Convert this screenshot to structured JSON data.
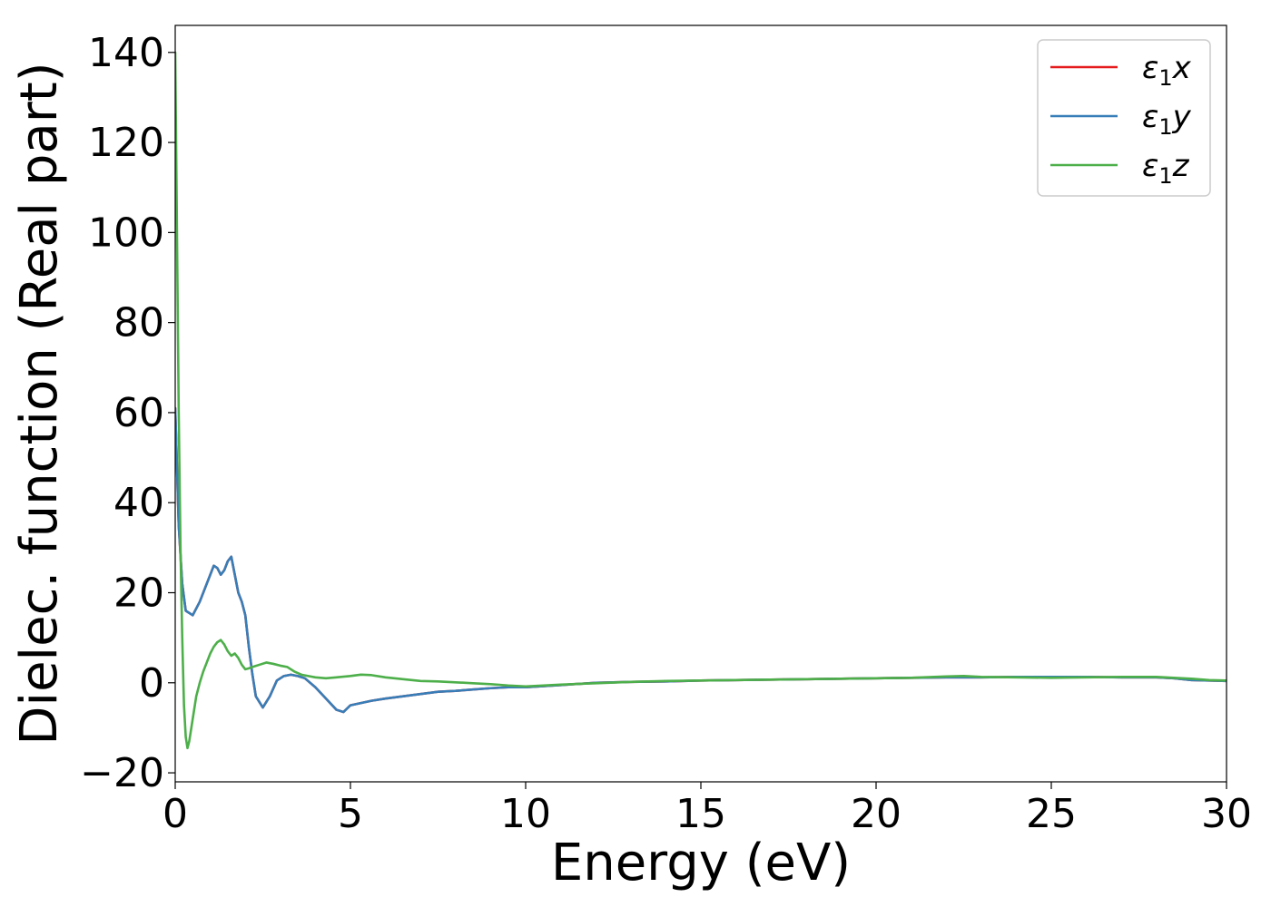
{
  "chart_data": {
    "type": "line",
    "title": "",
    "xlabel": "Energy (eV)",
    "ylabel": "Dielec. function (Real part)",
    "xlim": [
      0,
      30
    ],
    "ylim": [
      -22,
      146
    ],
    "xticks": [
      0,
      5,
      10,
      15,
      20,
      25,
      30
    ],
    "yticks": [
      -20,
      0,
      20,
      40,
      60,
      80,
      100,
      120,
      140
    ],
    "xtick_labels": [
      "0",
      "5",
      "10",
      "15",
      "20",
      "25",
      "30"
    ],
    "ytick_labels": [
      "−20",
      "0",
      "20",
      "40",
      "60",
      "80",
      "100",
      "120",
      "140"
    ],
    "grid": false,
    "legend_position": "top-right",
    "series": [
      {
        "name": "ε₁x",
        "legend_base": "ε",
        "legend_sub": "1",
        "legend_suffix": "x",
        "color": "#e41a1c",
        "x": [
          0,
          0.1,
          0.2,
          0.3,
          0.5,
          0.7,
          0.9,
          1.1,
          1.2,
          1.3,
          1.4,
          1.5,
          1.6,
          1.7,
          1.8,
          1.9,
          2.0,
          2.1,
          2.2,
          2.3,
          2.5,
          2.7,
          2.9,
          3.1,
          3.3,
          3.5,
          3.7,
          4.0,
          4.3,
          4.6,
          4.8,
          5.0,
          5.3,
          5.6,
          6.0,
          6.5,
          7.0,
          7.5,
          8.0,
          8.5,
          9.0,
          9.5,
          10,
          11,
          12,
          13,
          14,
          15,
          16,
          17,
          18,
          19,
          20,
          21,
          22,
          23,
          24,
          25,
          26,
          27,
          28,
          28.5,
          29,
          29.5,
          30
        ],
        "values": [
          61,
          35,
          22,
          16,
          15,
          18,
          22,
          26,
          25.5,
          24,
          25,
          27,
          28,
          24,
          20,
          18,
          15,
          8,
          2,
          -3,
          -5.5,
          -3,
          0.5,
          1.5,
          1.8,
          1.5,
          1,
          -1,
          -3.5,
          -6,
          -6.5,
          -5,
          -4.5,
          -4,
          -3.5,
          -3,
          -2.5,
          -2,
          -1.8,
          -1.5,
          -1.2,
          -1,
          -1,
          -0.5,
          0,
          0.2,
          0.3,
          0.5,
          0.6,
          0.7,
          0.8,
          0.9,
          1,
          1.1,
          1.2,
          1.2,
          1.3,
          1.3,
          1.3,
          1.2,
          1.2,
          1,
          0.6,
          0.5,
          0.4
        ]
      },
      {
        "name": "ε₁y",
        "legend_base": "ε",
        "legend_sub": "1",
        "legend_suffix": "y",
        "color": "#377eb8",
        "x": [
          0,
          0.1,
          0.2,
          0.3,
          0.5,
          0.7,
          0.9,
          1.1,
          1.2,
          1.3,
          1.4,
          1.5,
          1.6,
          1.7,
          1.8,
          1.9,
          2.0,
          2.1,
          2.2,
          2.3,
          2.5,
          2.7,
          2.9,
          3.1,
          3.3,
          3.5,
          3.7,
          4.0,
          4.3,
          4.6,
          4.8,
          5.0,
          5.3,
          5.6,
          6.0,
          6.5,
          7.0,
          7.5,
          8.0,
          8.5,
          9.0,
          9.5,
          10,
          11,
          12,
          13,
          14,
          15,
          16,
          17,
          18,
          19,
          20,
          21,
          22,
          23,
          24,
          25,
          26,
          27,
          28,
          28.5,
          29,
          29.5,
          30
        ],
        "values": [
          61,
          35,
          22,
          16,
          15,
          18,
          22,
          26,
          25.5,
          24,
          25,
          27,
          28,
          24,
          20,
          18,
          15,
          8,
          2,
          -3,
          -5.5,
          -3,
          0.5,
          1.5,
          1.8,
          1.5,
          1,
          -1,
          -3.5,
          -6,
          -6.5,
          -5,
          -4.5,
          -4,
          -3.5,
          -3,
          -2.5,
          -2,
          -1.8,
          -1.5,
          -1.2,
          -1,
          -1,
          -0.5,
          0,
          0.2,
          0.3,
          0.5,
          0.6,
          0.7,
          0.8,
          0.9,
          1,
          1.1,
          1.2,
          1.2,
          1.3,
          1.3,
          1.3,
          1.2,
          1.2,
          1,
          0.6,
          0.5,
          0.4
        ]
      },
      {
        "name": "ε₁z",
        "legend_base": "ε",
        "legend_sub": "1",
        "legend_suffix": "z",
        "color": "#4daf4a",
        "x": [
          0,
          0.05,
          0.1,
          0.15,
          0.2,
          0.25,
          0.3,
          0.35,
          0.4,
          0.5,
          0.6,
          0.7,
          0.8,
          0.9,
          1.0,
          1.1,
          1.2,
          1.3,
          1.4,
          1.5,
          1.6,
          1.7,
          1.8,
          1.9,
          2.0,
          2.1,
          2.2,
          2.4,
          2.6,
          2.8,
          3.0,
          3.2,
          3.4,
          3.6,
          3.8,
          4.0,
          4.3,
          4.6,
          5.0,
          5.3,
          5.6,
          6.0,
          6.5,
          7.0,
          7.5,
          8.0,
          8.5,
          9.0,
          9.5,
          10,
          11,
          12,
          13,
          14,
          15,
          16,
          17,
          18,
          19,
          20,
          21,
          22,
          22.5,
          23,
          24,
          25,
          26,
          27,
          28,
          28.5,
          29,
          29.5,
          30
        ],
        "values": [
          140,
          100,
          60,
          30,
          10,
          -5,
          -12,
          -14.5,
          -13,
          -8,
          -3,
          0,
          2.5,
          4.5,
          6.5,
          8,
          9,
          9.5,
          8.5,
          7,
          6,
          6.5,
          5.5,
          4,
          3,
          3.2,
          3.5,
          4,
          4.5,
          4.2,
          3.8,
          3.5,
          2.5,
          1.8,
          1.5,
          1.2,
          1,
          1.2,
          1.5,
          1.8,
          1.7,
          1.2,
          0.8,
          0.4,
          0.3,
          0.1,
          -0.1,
          -0.3,
          -0.6,
          -0.8,
          -0.4,
          -0.1,
          0.2,
          0.4,
          0.5,
          0.6,
          0.7,
          0.8,
          0.9,
          1,
          1.1,
          1.4,
          1.5,
          1.3,
          1.2,
          1.1,
          1.2,
          1.3,
          1.3,
          1.1,
          0.9,
          0.6,
          0.5
        ]
      }
    ]
  }
}
